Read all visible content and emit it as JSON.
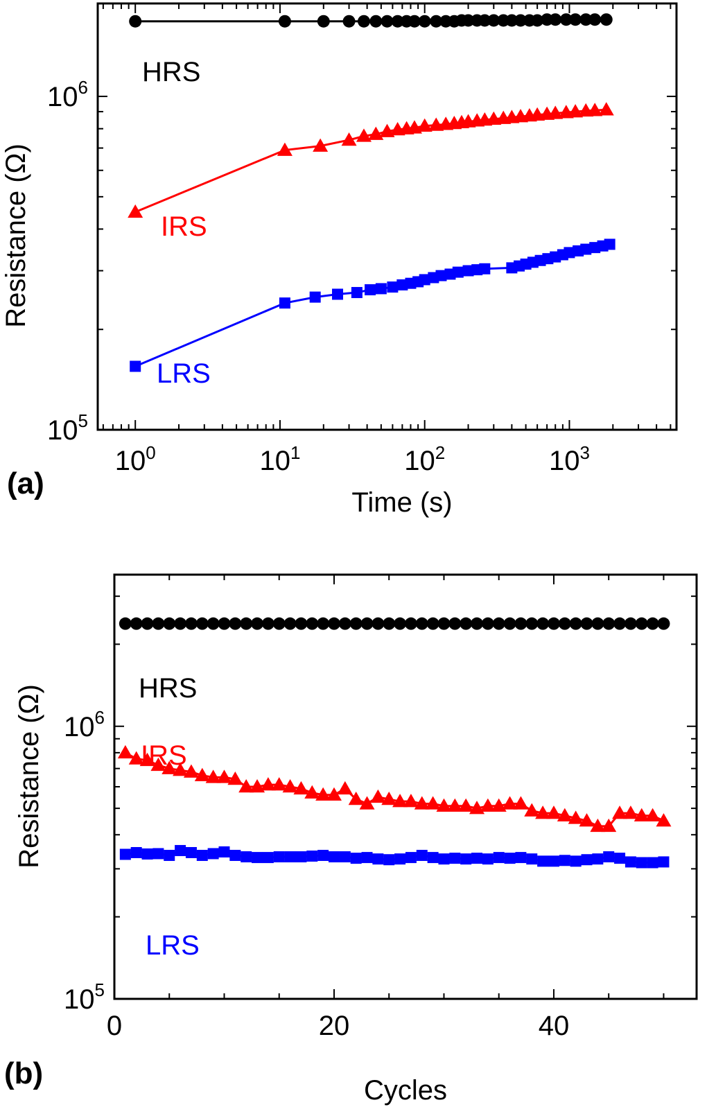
{
  "chart_data": [
    {
      "panel_label": "(a)",
      "type": "scatter",
      "xscale": "log",
      "yscale": "log",
      "xlabel": "Time (s)",
      "ylabel": "Resistance (Ω)",
      "xlim": [
        0.55,
        5500
      ],
      "ylim": [
        100000,
        1900000
      ],
      "xticks": [
        {
          "value": 1,
          "base": "10",
          "exp": "0"
        },
        {
          "value": 10,
          "base": "10",
          "exp": "1"
        },
        {
          "value": 100,
          "base": "10",
          "exp": "2"
        },
        {
          "value": 1000,
          "base": "10",
          "exp": "3"
        }
      ],
      "yticks": [
        {
          "value": 100000,
          "base": "10",
          "exp": "5"
        },
        {
          "value": 1000000,
          "base": "10",
          "exp": "6"
        }
      ],
      "series": [
        {
          "name": "HRS",
          "color": "#000000",
          "marker": "circle",
          "x": [
            1,
            10.8,
            20,
            30,
            38,
            46,
            55,
            65,
            75,
            85,
            100,
            120,
            140,
            160,
            180,
            200,
            230,
            260,
            300,
            350,
            400,
            460,
            530,
            600,
            700,
            800,
            950,
            1100,
            1300,
            1500,
            1800
          ],
          "y": [
            1680000,
            1680000,
            1680000,
            1680000,
            1680000,
            1680000,
            1680000,
            1680000,
            1680000,
            1680000,
            1680000,
            1680000,
            1680000,
            1680000,
            1690000,
            1690000,
            1690000,
            1690000,
            1690000,
            1690000,
            1690000,
            1690000,
            1690000,
            1690000,
            1700000,
            1700000,
            1700000,
            1700000,
            1700000,
            1700000,
            1700000
          ]
        },
        {
          "name": "IRS",
          "color": "#ff0000",
          "marker": "triangle",
          "x": [
            1,
            10.8,
            19,
            30,
            38,
            46,
            55,
            65,
            75,
            85,
            100,
            120,
            140,
            160,
            180,
            200,
            230,
            260,
            300,
            350,
            400,
            460,
            530,
            600,
            700,
            800,
            950,
            1100,
            1300,
            1500,
            1800
          ],
          "y": [
            450000,
            690000,
            710000,
            740000,
            760000,
            770000,
            785000,
            795000,
            800000,
            805000,
            815000,
            820000,
            825000,
            830000,
            835000,
            840000,
            845000,
            850000,
            855000,
            860000,
            865000,
            870000,
            875000,
            880000,
            885000,
            890000,
            895000,
            900000,
            905000,
            908000,
            912000
          ]
        },
        {
          "name": "LRS",
          "color": "#0000ff",
          "marker": "square",
          "x": [
            1,
            10.8,
            17.5,
            25,
            34,
            42,
            50,
            60,
            70,
            80,
            90,
            100,
            115,
            130,
            150,
            170,
            200,
            230,
            260,
            400,
            450,
            500,
            560,
            630,
            710,
            800,
            900,
            1000,
            1150,
            1300,
            1500,
            1700,
            1900
          ],
          "y": [
            155000,
            240000,
            250000,
            255000,
            258000,
            263000,
            265000,
            268000,
            272000,
            275000,
            278000,
            282000,
            286000,
            290000,
            293000,
            297000,
            300000,
            302000,
            304000,
            306000,
            310000,
            314000,
            318000,
            322000,
            326000,
            330000,
            335000,
            340000,
            344000,
            348000,
            352000,
            356000,
            360000
          ]
        }
      ],
      "annotations": [
        "HRS",
        "IRS",
        "LRS"
      ]
    },
    {
      "panel_label": "(b)",
      "type": "scatter",
      "xscale": "linear",
      "yscale": "log",
      "xlabel": "Cycles",
      "ylabel": "Resistance (Ω)",
      "xlim": [
        0,
        53
      ],
      "ylim": [
        100000,
        3600000
      ],
      "xticks": [
        {
          "value": 0,
          "label": "0"
        },
        {
          "value": 20,
          "label": "20"
        },
        {
          "value": 40,
          "label": "40"
        }
      ],
      "yticks": [
        {
          "value": 100000,
          "base": "10",
          "exp": "5"
        },
        {
          "value": 1000000,
          "base": "10",
          "exp": "6"
        }
      ],
      "series": [
        {
          "name": "HRS",
          "color": "#000000",
          "marker": "circle",
          "x": [
            1,
            2,
            3,
            4,
            5,
            6,
            7,
            8,
            9,
            10,
            11,
            12,
            13,
            14,
            15,
            16,
            17,
            18,
            19,
            20,
            21,
            22,
            23,
            24,
            25,
            26,
            27,
            28,
            29,
            30,
            31,
            32,
            33,
            34,
            35,
            36,
            37,
            38,
            39,
            40,
            41,
            42,
            43,
            44,
            45,
            46,
            47,
            48,
            49,
            50
          ],
          "y": [
            2380000,
            2380000,
            2380000,
            2380000,
            2380000,
            2380000,
            2380000,
            2380000,
            2380000,
            2380000,
            2380000,
            2380000,
            2380000,
            2380000,
            2380000,
            2380000,
            2380000,
            2380000,
            2380000,
            2380000,
            2380000,
            2380000,
            2380000,
            2380000,
            2380000,
            2380000,
            2380000,
            2380000,
            2380000,
            2380000,
            2380000,
            2380000,
            2380000,
            2380000,
            2380000,
            2380000,
            2380000,
            2380000,
            2380000,
            2380000,
            2380000,
            2380000,
            2380000,
            2380000,
            2380000,
            2380000,
            2380000,
            2380000,
            2380000,
            2380000
          ]
        },
        {
          "name": "IRS",
          "color": "#ff0000",
          "marker": "triangle",
          "x": [
            1,
            2,
            3,
            4,
            5,
            6,
            7,
            8,
            9,
            10,
            11,
            12,
            13,
            14,
            15,
            16,
            17,
            18,
            19,
            20,
            21,
            22,
            23,
            24,
            25,
            26,
            27,
            28,
            29,
            30,
            31,
            32,
            33,
            34,
            35,
            36,
            37,
            38,
            39,
            40,
            41,
            42,
            43,
            44,
            45,
            46,
            47,
            48,
            49,
            50
          ],
          "y": [
            800000,
            760000,
            750000,
            720000,
            700000,
            690000,
            680000,
            660000,
            650000,
            650000,
            640000,
            600000,
            600000,
            610000,
            610000,
            600000,
            590000,
            570000,
            560000,
            560000,
            590000,
            540000,
            520000,
            550000,
            540000,
            530000,
            530000,
            520000,
            520000,
            510000,
            510000,
            510000,
            500000,
            510000,
            510000,
            520000,
            520000,
            490000,
            480000,
            480000,
            470000,
            460000,
            450000,
            430000,
            430000,
            480000,
            480000,
            470000,
            470000,
            450000
          ]
        },
        {
          "name": "LRS",
          "color": "#0000ff",
          "marker": "square",
          "x": [
            1,
            2,
            3,
            4,
            5,
            6,
            7,
            8,
            9,
            10,
            11,
            12,
            13,
            14,
            15,
            16,
            17,
            18,
            19,
            20,
            21,
            22,
            23,
            24,
            25,
            26,
            27,
            28,
            29,
            30,
            31,
            32,
            33,
            34,
            35,
            36,
            37,
            38,
            39,
            40,
            41,
            42,
            43,
            44,
            45,
            46,
            47,
            48,
            49,
            50
          ],
          "y": [
            339000,
            344000,
            340000,
            341000,
            336000,
            350000,
            344000,
            336000,
            341000,
            346000,
            336000,
            332000,
            330000,
            330000,
            332000,
            332000,
            332000,
            334000,
            336000,
            332000,
            332000,
            328000,
            330000,
            326000,
            324000,
            326000,
            330000,
            336000,
            330000,
            326000,
            328000,
            326000,
            328000,
            326000,
            330000,
            328000,
            330000,
            326000,
            320000,
            320000,
            322000,
            320000,
            324000,
            326000,
            332000,
            328000,
            318000,
            316000,
            316000,
            318000
          ]
        }
      ],
      "annotations": [
        "HRS",
        "IRS",
        "LRS"
      ]
    }
  ]
}
